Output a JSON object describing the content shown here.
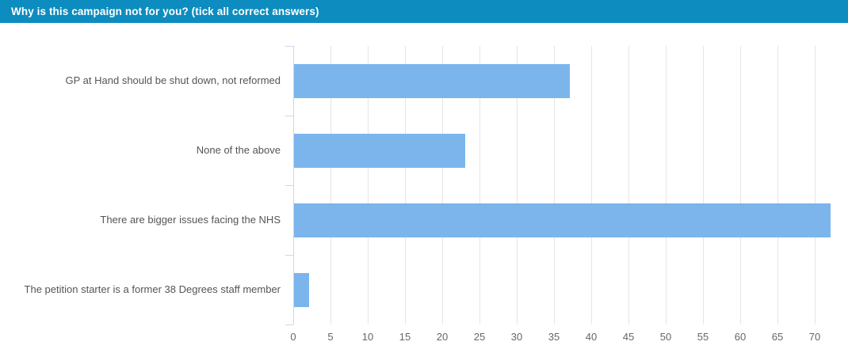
{
  "header": {
    "title": "Why is this campaign not for you? (tick all correct answers)",
    "background_color": "#0d8cbf",
    "text_color": "#ffffff"
  },
  "chart_data": {
    "type": "bar",
    "orientation": "horizontal",
    "title": "Why is this campaign not for you? (tick all correct answers)",
    "xlabel": "",
    "ylabel": "",
    "categories": [
      "GP at Hand should be shut down, not reformed",
      "None of the above",
      "There are bigger issues facing the NHS",
      "The petition starter is a former 38 Degrees staff member"
    ],
    "values": [
      37,
      23,
      72,
      2
    ],
    "x_ticks": [
      0,
      5,
      10,
      15,
      20,
      25,
      30,
      35,
      40,
      45,
      50,
      55,
      60,
      65,
      70
    ],
    "xlim": [
      0,
      73.6
    ],
    "grid": true,
    "legend": false,
    "bar_color": "#7cb5ec",
    "gridline_color": "#e6e6e6",
    "axis_line_color": "#ccd6eb",
    "tick_label_color": "#666666",
    "category_label_color": "#555555"
  }
}
